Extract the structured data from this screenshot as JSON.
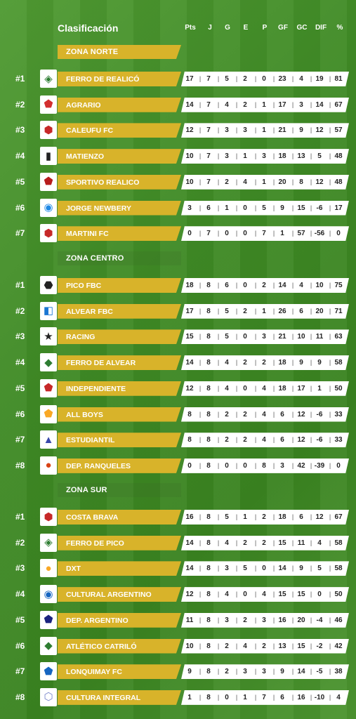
{
  "header": {
    "title": "Clasificación",
    "columns": [
      "Pts",
      "J",
      "G",
      "E",
      "P",
      "GF",
      "GC",
      "DIF",
      "%"
    ]
  },
  "zones": [
    {
      "name": "ZONA NORTE",
      "teams": [
        {
          "rank": "#1",
          "name": "FERRO DE REALICÓ",
          "logo_icon": "ferro-realico-crest-icon",
          "logo_glyph": "◈",
          "logo_color": "#2e7d32",
          "stats": [
            "17",
            "7",
            "5",
            "2",
            "0",
            "23",
            "4",
            "19",
            "81"
          ]
        },
        {
          "rank": "#2",
          "name": "AGRARIO",
          "logo_icon": "agrario-crest-icon",
          "logo_glyph": "⬟",
          "logo_color": "#d32f2f",
          "stats": [
            "14",
            "7",
            "4",
            "2",
            "1",
            "17",
            "3",
            "14",
            "67"
          ]
        },
        {
          "rank": "#3",
          "name": "CALEUFU FC",
          "logo_icon": "caleufu-crest-icon",
          "logo_glyph": "⬢",
          "logo_color": "#c62828",
          "stats": [
            "12",
            "7",
            "3",
            "3",
            "1",
            "21",
            "9",
            "12",
            "57"
          ]
        },
        {
          "rank": "#4",
          "name": "MATIENZO",
          "logo_icon": "matienzo-crest-icon",
          "logo_glyph": "▮",
          "logo_color": "#222222",
          "stats": [
            "10",
            "7",
            "3",
            "1",
            "3",
            "18",
            "13",
            "5",
            "48"
          ]
        },
        {
          "rank": "#5",
          "name": "SPORTIVO REALICO",
          "logo_icon": "sportivo-realico-crest-icon",
          "logo_glyph": "⬟",
          "logo_color": "#b71c1c",
          "stats": [
            "10",
            "7",
            "2",
            "4",
            "1",
            "20",
            "8",
            "12",
            "48"
          ]
        },
        {
          "rank": "#6",
          "name": "JORGE NEWBERY",
          "logo_icon": "jorge-newbery-crest-icon",
          "logo_glyph": "◉",
          "logo_color": "#1e88e5",
          "stats": [
            "3",
            "6",
            "1",
            "0",
            "5",
            "9",
            "15",
            "-6",
            "17"
          ]
        },
        {
          "rank": "#7",
          "name": "MARTINI FC",
          "logo_icon": "martini-crest-icon",
          "logo_glyph": "⬢",
          "logo_color": "#c62828",
          "stats": [
            "0",
            "7",
            "0",
            "0",
            "7",
            "1",
            "57",
            "-56",
            "0"
          ]
        }
      ]
    },
    {
      "name": "ZONA CENTRO",
      "teams": [
        {
          "rank": "#1",
          "name": "PICO FBC",
          "logo_icon": "pico-fbc-crest-icon",
          "logo_glyph": "⬣",
          "logo_color": "#222222",
          "stats": [
            "18",
            "8",
            "6",
            "0",
            "2",
            "14",
            "4",
            "10",
            "75"
          ]
        },
        {
          "rank": "#2",
          "name": "ALVEAR FBC",
          "logo_icon": "alvear-fbc-crest-icon",
          "logo_glyph": "◧",
          "logo_color": "#1976d2",
          "stats": [
            "17",
            "8",
            "5",
            "2",
            "1",
            "26",
            "6",
            "20",
            "71"
          ]
        },
        {
          "rank": "#3",
          "name": "RACING",
          "logo_icon": "racing-crest-icon",
          "logo_glyph": "★",
          "logo_color": "#222222",
          "stats": [
            "15",
            "8",
            "5",
            "0",
            "3",
            "21",
            "10",
            "11",
            "63"
          ]
        },
        {
          "rank": "#4",
          "name": "FERRO DE ALVEAR",
          "logo_icon": "ferro-alvear-crest-icon",
          "logo_glyph": "◆",
          "logo_color": "#2e7d32",
          "stats": [
            "14",
            "8",
            "4",
            "2",
            "2",
            "18",
            "9",
            "9",
            "58"
          ]
        },
        {
          "rank": "#5",
          "name": "INDEPENDIENTE",
          "logo_icon": "independiente-crest-icon",
          "logo_glyph": "⬟",
          "logo_color": "#c62828",
          "stats": [
            "12",
            "8",
            "4",
            "0",
            "4",
            "18",
            "17",
            "1",
            "50"
          ]
        },
        {
          "rank": "#6",
          "name": "ALL BOYS",
          "logo_icon": "all-boys-crest-icon",
          "logo_glyph": "⬟",
          "logo_color": "#f9a825",
          "stats": [
            "8",
            "8",
            "2",
            "2",
            "4",
            "6",
            "12",
            "-6",
            "33"
          ]
        },
        {
          "rank": "#7",
          "name": "ESTUDIANTIL",
          "logo_icon": "estudiantil-crest-icon",
          "logo_glyph": "▲",
          "logo_color": "#3949ab",
          "stats": [
            "8",
            "8",
            "2",
            "2",
            "4",
            "6",
            "12",
            "-6",
            "33"
          ]
        },
        {
          "rank": "#8",
          "name": "DEP. RANQUELES",
          "logo_icon": "ranqueles-crest-icon",
          "logo_glyph": "●",
          "logo_color": "#d84315",
          "stats": [
            "0",
            "8",
            "0",
            "0",
            "8",
            "3",
            "42",
            "-39",
            "0"
          ]
        }
      ]
    },
    {
      "name": "ZONA SUR",
      "teams": [
        {
          "rank": "#1",
          "name": "COSTA BRAVA",
          "logo_icon": "costa-brava-crest-icon",
          "logo_glyph": "⬢",
          "logo_color": "#c62828",
          "stats": [
            "16",
            "8",
            "5",
            "1",
            "2",
            "18",
            "6",
            "12",
            "67"
          ]
        },
        {
          "rank": "#2",
          "name": "FERRO DE PICO",
          "logo_icon": "ferro-pico-crest-icon",
          "logo_glyph": "◈",
          "logo_color": "#2e7d32",
          "stats": [
            "14",
            "8",
            "4",
            "2",
            "2",
            "15",
            "11",
            "4",
            "58"
          ]
        },
        {
          "rank": "#3",
          "name": "DXT",
          "logo_icon": "dxt-crest-icon",
          "logo_glyph": "●",
          "logo_color": "#f9a825",
          "stats": [
            "14",
            "8",
            "3",
            "5",
            "0",
            "14",
            "9",
            "5",
            "58"
          ]
        },
        {
          "rank": "#4",
          "name": "CULTURAL ARGENTINO",
          "logo_icon": "cultural-argentino-crest-icon",
          "logo_glyph": "◉",
          "logo_color": "#1565c0",
          "stats": [
            "12",
            "8",
            "4",
            "0",
            "4",
            "15",
            "15",
            "0",
            "50"
          ]
        },
        {
          "rank": "#5",
          "name": "DEP. ARGENTINO",
          "logo_icon": "dep-argentino-crest-icon",
          "logo_glyph": "⬟",
          "logo_color": "#1a237e",
          "stats": [
            "11",
            "8",
            "3",
            "2",
            "3",
            "16",
            "20",
            "-4",
            "46"
          ]
        },
        {
          "rank": "#6",
          "name": "ATLÉTICO CATRILÓ",
          "logo_icon": "atletico-catrilo-crest-icon",
          "logo_glyph": "◆",
          "logo_color": "#2e7d32",
          "stats": [
            "10",
            "8",
            "2",
            "4",
            "2",
            "13",
            "15",
            "-2",
            "42"
          ]
        },
        {
          "rank": "#7",
          "name": "LONQUIMAY FC",
          "logo_icon": "lonquimay-crest-icon",
          "logo_glyph": "⬟",
          "logo_color": "#1565c0",
          "stats": [
            "9",
            "8",
            "2",
            "3",
            "3",
            "9",
            "14",
            "-5",
            "38"
          ]
        },
        {
          "rank": "#8",
          "name": "CULTURA INTEGRAL",
          "logo_icon": "cultura-integral-crest-icon",
          "logo_glyph": "⬡",
          "logo_color": "#7986cb",
          "stats": [
            "1",
            "8",
            "0",
            "1",
            "7",
            "6",
            "16",
            "-10",
            "4"
          ]
        }
      ]
    }
  ]
}
